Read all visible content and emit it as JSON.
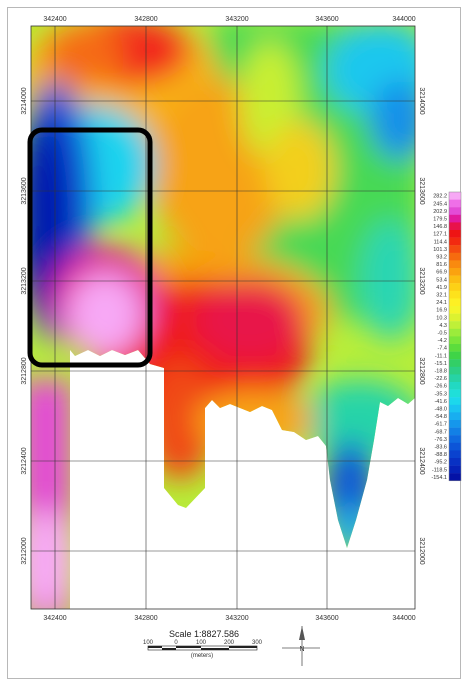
{
  "x_ticks": [
    "342400",
    "342800",
    "343200",
    "343600",
    "344000"
  ],
  "y_ticks_left": [
    "3214000",
    "3213600",
    "3213200",
    "3212800",
    "3212400",
    "3212000"
  ],
  "y_ticks_right": [
    "3214000",
    "3213600",
    "3213200",
    "3212800",
    "3212400",
    "3212000"
  ],
  "legend": {
    "labels": [
      "282.2",
      "245.4",
      "202.9",
      "179.5",
      "146.8",
      "127.1",
      "114.4",
      "101.3",
      "93.2",
      "81.6",
      "66.9",
      "53.4",
      "41.9",
      "32.1",
      "24.1",
      "16.9",
      "10.3",
      "4.3",
      "-0.5",
      "-4.2",
      "-7.4",
      "-11.1",
      "-15.1",
      "-18.8",
      "-22.6",
      "-26.6",
      "-35.3",
      "-41.6",
      "-48.0",
      "-54.8",
      "-61.7",
      "-68.7",
      "-76.3",
      "-83.6",
      "-88.8",
      "-95.2",
      "-118.5",
      "-154.1"
    ],
    "colors": [
      "#f7a8f5",
      "#ef6fe8",
      "#e34bd6",
      "#e11a9e",
      "#e8124a",
      "#ee1414",
      "#f22a10",
      "#f44b10",
      "#f66b0f",
      "#f98a0f",
      "#fba20f",
      "#fcbd12",
      "#fdd116",
      "#fde21c",
      "#fdf024",
      "#f4f52a",
      "#dcf230",
      "#bff038",
      "#9bec3b",
      "#7be63a",
      "#5cdd3c",
      "#3fd447",
      "#32cf66",
      "#2ccf86",
      "#27d3a5",
      "#22d9c2",
      "#1fdfd9",
      "#1cd8ec",
      "#1ac4f1",
      "#18aef0",
      "#1597ec",
      "#1280e6",
      "#0f6ae0",
      "#0c55d8",
      "#0a42cf",
      "#0831c4",
      "#0622b8",
      "#0412a6"
    ]
  },
  "scale": {
    "title": "Scale 1:8827.586",
    "labels": [
      "100",
      "0",
      "100",
      "200",
      "300"
    ],
    "unit": "(meters)"
  },
  "north_label": "N",
  "colors": {
    "highlight_box": "#000000",
    "grid": "#333333"
  }
}
